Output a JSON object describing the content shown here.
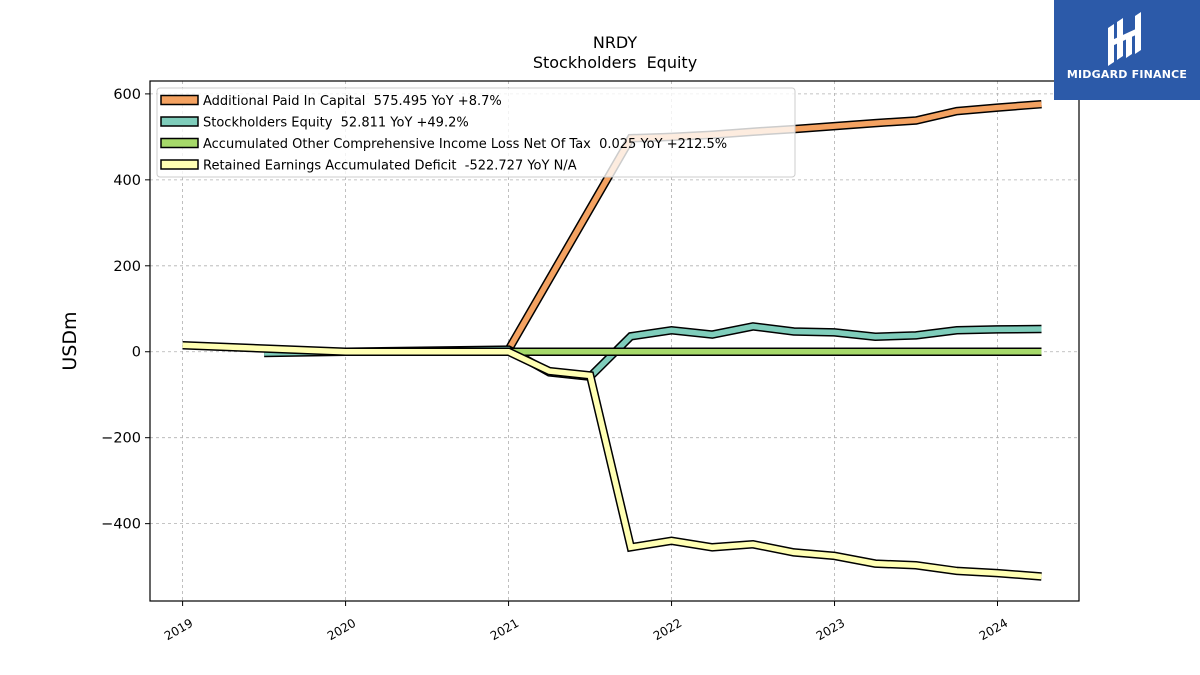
{
  "chart_data": {
    "type": "line",
    "title": "NRDY",
    "subtitle": "Stockholders  Equity",
    "ylabel": "USDm",
    "xlabel": "",
    "xlim": [
      2018.8,
      2024.5
    ],
    "ylim": [
      -580,
      630
    ],
    "yticks": [
      600,
      400,
      200,
      0,
      -200,
      -400
    ],
    "ytick_labels": [
      "600",
      "400",
      "200",
      "0",
      "−200",
      "−400"
    ],
    "xticks": [
      2019,
      2020,
      2021,
      2022,
      2023,
      2024
    ],
    "xtick_labels": [
      "2019",
      "2020",
      "2021",
      "2022",
      "2023",
      "2024"
    ],
    "grid": true,
    "legend_position": "top-left",
    "series": [
      {
        "name": "Additional Paid In Capital",
        "legend": "Additional Paid In Capital  575.495 YoY +8.7%",
        "color": "#f4a261",
        "x": [
          2021.0,
          2021.75,
          2022.0,
          2022.25,
          2022.5,
          2022.75,
          2023.0,
          2023.25,
          2023.5,
          2023.75,
          2024.0,
          2024.27
        ],
        "y": [
          5,
          497,
          500,
          505,
          512,
          518,
          525,
          532,
          538,
          560,
          568,
          576
        ]
      },
      {
        "name": "Stockholders Equity",
        "legend": "Stockholders Equity  52.811 YoY +49.2%",
        "color": "#7fcdbb",
        "x": [
          2019.5,
          2020.0,
          2021.0,
          2021.25,
          2021.5,
          2021.75,
          2022.0,
          2022.25,
          2022.5,
          2022.75,
          2023.0,
          2023.25,
          2023.5,
          2023.75,
          2024.0,
          2024.27
        ],
        "y": [
          -3,
          0,
          5,
          -48,
          -58,
          36,
          50,
          40,
          59,
          47,
          45,
          35,
          38,
          50,
          52,
          53
        ]
      },
      {
        "name": "Accumulated Other Comprehensive Income Loss Net Of Tax",
        "legend": "Accumulated Other Comprehensive Income Loss Net Of Tax  0.025 YoY +212.5%",
        "color": "#a6d96a",
        "x": [
          2021.0,
          2021.25,
          2021.5,
          2021.75,
          2022.0,
          2022.5,
          2023.0,
          2023.5,
          2024.0,
          2024.27
        ],
        "y": [
          0.1,
          0.1,
          0.1,
          0.1,
          0.1,
          0.05,
          0.03,
          0.02,
          0.02,
          0.025
        ]
      },
      {
        "name": "Retained Earnings Accumulated Deficit",
        "legend": "Retained Earnings Accumulated Deficit  -522.727 YoY N/A",
        "color": "#ffffb3",
        "x": [
          2019.0,
          2020.0,
          2021.0,
          2021.25,
          2021.5,
          2021.75,
          2022.0,
          2022.25,
          2022.5,
          2022.75,
          2023.0,
          2023.25,
          2023.5,
          2023.75,
          2024.0,
          2024.27
        ],
        "y": [
          15,
          0,
          0,
          -45,
          -55,
          -455,
          -440,
          -455,
          -448,
          -467,
          -475,
          -493,
          -497,
          -510,
          -515,
          -523
        ]
      }
    ]
  },
  "logo": {
    "text": "MIDGARD FINANCE",
    "color": "#2c5aa9"
  }
}
